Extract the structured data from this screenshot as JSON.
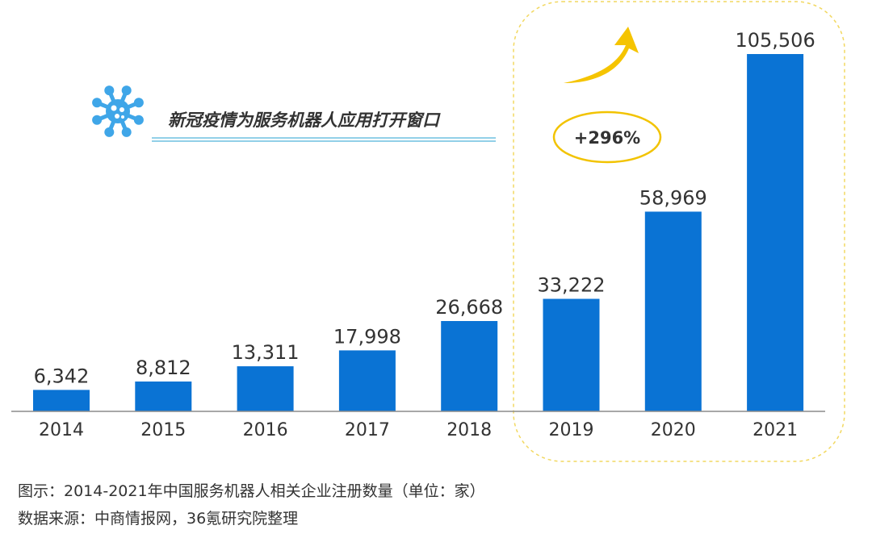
{
  "chart_data": {
    "type": "bar",
    "categories": [
      "2014",
      "2015",
      "2016",
      "2017",
      "2018",
      "2019",
      "2020",
      "2021"
    ],
    "values": [
      6342,
      8812,
      13311,
      17998,
      26668,
      33222,
      58969,
      105506
    ],
    "value_labels": [
      "6,342",
      "8,812",
      "13,311",
      "17,998",
      "26,668",
      "33,222",
      "58,969",
      "105,506"
    ],
    "ylim": [
      0,
      105506
    ],
    "grid": false,
    "legend": "none",
    "annotations": {
      "banner": "新冠疫情为服务机器人应用打开窗口",
      "growth": "+296%"
    }
  },
  "caption": "图示：2014-2021年中国服务机器人相关企业注册数量（单位：家）",
  "source": "数据来源：中商情报网，36氪研究院整理",
  "colors": {
    "bar": "#0A73D4",
    "virus_icon": "#3FA6E8",
    "highlight_border": "#F2D860",
    "growth_ellipse": "#F2C300",
    "arrow": "#F5C400",
    "banner_line": "#6FC1E0",
    "axis": "#8C8C8C",
    "text": "#333333"
  },
  "icons": {
    "virus": "virus-icon",
    "arrow": "curved-arrow-up-icon"
  }
}
